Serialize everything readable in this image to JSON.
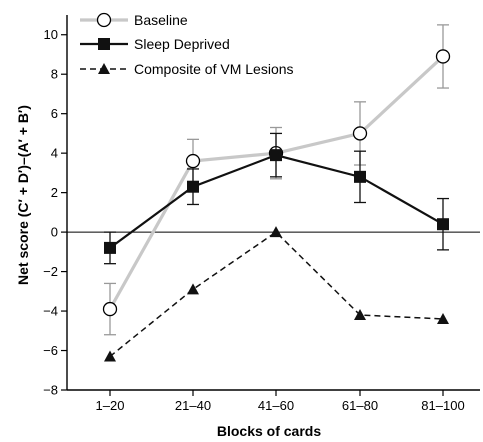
{
  "chart_data": {
    "type": "line",
    "xlabel": "Blocks of cards",
    "ylabel": "Net score (C′ + D′)–(A′ + B′)",
    "categories": [
      "1–20",
      "21–40",
      "41–60",
      "61–80",
      "81–100"
    ],
    "ylim": [
      -8,
      11
    ],
    "yticks": [
      "10",
      "8",
      "6",
      "4",
      "2",
      "0",
      "−2",
      "−4",
      "−6",
      "−8"
    ],
    "grid": false,
    "legend_position": "top-left",
    "series": [
      {
        "name": "Baseline",
        "values": [
          -3.9,
          3.6,
          4.0,
          5.0,
          8.9
        ],
        "error": [
          1.3,
          1.1,
          1.3,
          1.6,
          1.6
        ],
        "marker": "open-circle",
        "line_style": "solid",
        "color": "#c8c8c8"
      },
      {
        "name": "Sleep Deprived",
        "values": [
          -0.8,
          2.3,
          3.9,
          2.8,
          0.4
        ],
        "error": [
          0.8,
          0.9,
          1.1,
          1.3,
          1.3
        ],
        "marker": "filled-square",
        "line_style": "solid",
        "color": "#111111"
      },
      {
        "name": "Composite of VM Lesions",
        "values": [
          -6.3,
          -2.9,
          0.0,
          -4.2,
          -4.4
        ],
        "marker": "filled-triangle",
        "line_style": "dashed",
        "color": "#111111"
      }
    ]
  }
}
